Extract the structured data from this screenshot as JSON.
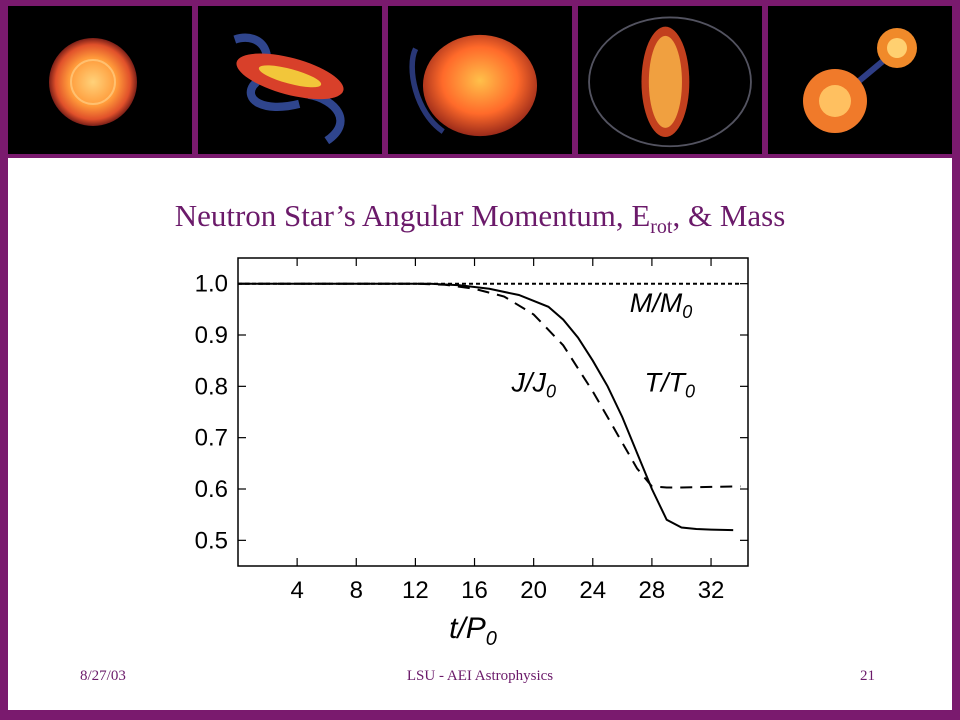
{
  "slide": {
    "title_main": "Neutron Star’s Angular Momentum, E",
    "title_sub": "rot",
    "title_tail": ", & Mass",
    "footer_date": "8/27/03",
    "footer_center": "LSU - AEI Astrophysics",
    "footer_page": "21"
  },
  "banner": {
    "panels": [
      "star-disk",
      "tidal-arms",
      "merged-blob",
      "elongated-star",
      "binary-pair"
    ]
  },
  "chart_data": {
    "type": "line",
    "xlabel": "t/P",
    "xlabel_sub": "0",
    "xlim": [
      0,
      34.5
    ],
    "ylim": [
      0.45,
      1.05
    ],
    "x_ticks": [
      4,
      8,
      12,
      16,
      20,
      24,
      28,
      32
    ],
    "x_tick_labels": [
      "4",
      "8",
      "12",
      "16",
      "20",
      "24",
      "28",
      "32"
    ],
    "y_ticks": [
      0.5,
      0.6,
      0.7,
      0.8,
      0.9,
      1.0
    ],
    "y_tick_labels": [
      "0.5",
      "0.6",
      "0.7",
      "0.8",
      "0.9",
      "1.0"
    ],
    "series": [
      {
        "label": "M/M0",
        "style": "short-dash",
        "x": [
          0,
          34
        ],
        "y": [
          1.0,
          1.0
        ]
      },
      {
        "label": "J/J0",
        "style": "long-dash",
        "x": [
          0,
          12,
          14,
          16,
          18,
          20,
          22,
          24,
          25,
          26,
          27,
          28,
          29,
          30,
          32,
          34
        ],
        "y": [
          1.0,
          1.0,
          0.998,
          0.99,
          0.975,
          0.94,
          0.88,
          0.79,
          0.74,
          0.69,
          0.64,
          0.605,
          0.603,
          0.603,
          0.604,
          0.605
        ]
      },
      {
        "label": "T/T0",
        "style": "solid",
        "x": [
          0,
          13,
          15,
          17,
          19,
          21,
          22,
          23,
          24,
          25,
          26,
          27,
          28,
          29,
          30,
          31,
          32,
          33.5
        ],
        "y": [
          1.0,
          1.0,
          0.997,
          0.99,
          0.978,
          0.955,
          0.93,
          0.895,
          0.85,
          0.8,
          0.74,
          0.67,
          0.6,
          0.54,
          0.525,
          0.522,
          0.521,
          0.52
        ]
      }
    ],
    "annotations": [
      {
        "text": "M/M",
        "sub": "0",
        "x": 26.5,
        "y": 0.945
      },
      {
        "text": "J/J",
        "sub": "0",
        "x": 18.5,
        "y": 0.79
      },
      {
        "text": "T/T",
        "sub": "0",
        "x": 27.5,
        "y": 0.79
      }
    ]
  }
}
